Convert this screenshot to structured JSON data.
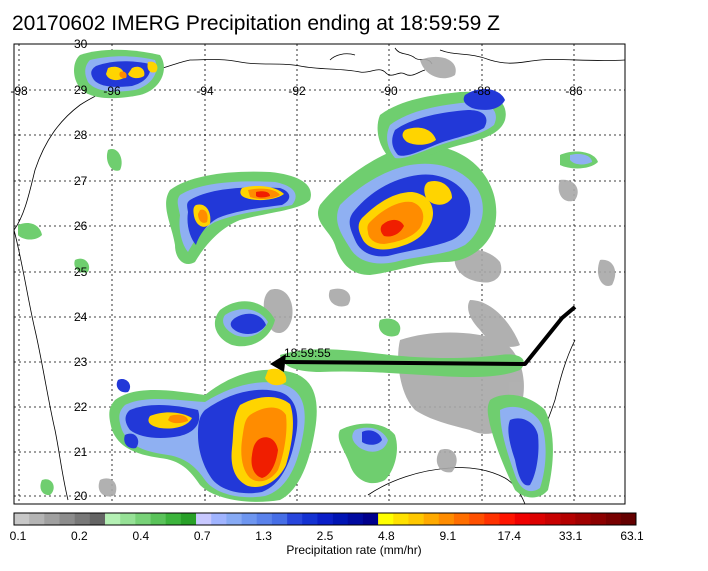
{
  "title": "20170602 IMERG Precipitation ending at 18:59:59 Z",
  "map": {
    "lat_labels": [
      "30",
      "29",
      "28",
      "27",
      "26",
      "25",
      "24",
      "23",
      "22",
      "21",
      "20"
    ],
    "lon_labels": [
      "-98",
      "-96",
      "-94",
      "-92",
      "-90",
      "-88",
      "-86"
    ],
    "track_time_label": "18:59:55"
  },
  "colorbar": {
    "title": "Precipitation rate (mm/hr)",
    "tick_labels": [
      "0.1",
      "0.2",
      "0.4",
      "0.7",
      "1.3",
      "2.5",
      "4.8",
      "9.1",
      "17.4",
      "33.1",
      "63.1"
    ],
    "colors": [
      "#c8c8c8",
      "#b4b4b4",
      "#a0a0a0",
      "#8c8c8c",
      "#787878",
      "#646464",
      "#b4f0b4",
      "#96e196",
      "#78d278",
      "#5ac35a",
      "#3cb43c",
      "#28a028",
      "#c8c8ff",
      "#a0b4ff",
      "#87aaf5",
      "#6e96f0",
      "#5a82eb",
      "#466ee6",
      "#2846dc",
      "#1432d2",
      "#0a1ec8",
      "#0014b4",
      "#000aa0",
      "#00008c",
      "#ffff00",
      "#ffe100",
      "#ffc800",
      "#ffaa00",
      "#ff8c00",
      "#ff6e00",
      "#ff5000",
      "#ff3200",
      "#ff1400",
      "#f00000",
      "#dc0000",
      "#c80000",
      "#b40000",
      "#a00000",
      "#8c0000",
      "#780000",
      "#640000"
    ]
  }
}
